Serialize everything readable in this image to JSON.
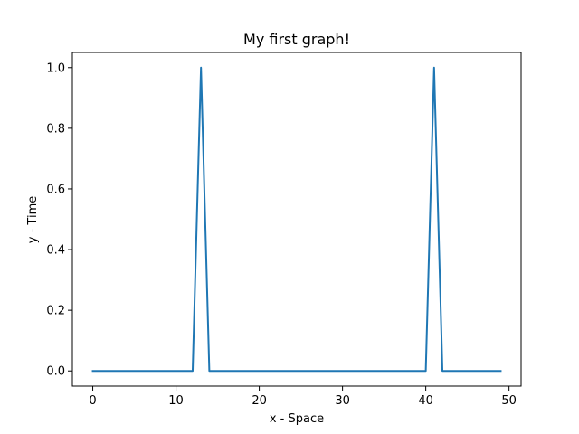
{
  "chart_data": {
    "type": "line",
    "title": "My first graph!",
    "xlabel": "x - Space",
    "ylabel": "y - Time",
    "xlim": [
      -2.45,
      51.45
    ],
    "ylim": [
      -0.05,
      1.05
    ],
    "grid": false,
    "x_ticks": [
      0,
      10,
      20,
      30,
      40,
      50
    ],
    "y_ticks": [
      0.0,
      0.2,
      0.4,
      0.6,
      0.8,
      1.0
    ],
    "x_tick_labels": [
      "0",
      "10",
      "20",
      "30",
      "40",
      "50"
    ],
    "y_tick_labels": [
      "0.0",
      "0.2",
      "0.4",
      "0.6",
      "0.8",
      "1.0"
    ],
    "series": [
      {
        "color": "#1f77b4",
        "x": [
          0,
          1,
          2,
          3,
          4,
          5,
          6,
          7,
          8,
          9,
          10,
          11,
          12,
          13,
          14,
          15,
          16,
          17,
          18,
          19,
          20,
          21,
          22,
          23,
          24,
          25,
          26,
          27,
          28,
          29,
          30,
          31,
          32,
          33,
          34,
          35,
          36,
          37,
          38,
          39,
          40,
          41,
          42,
          43,
          44,
          45,
          46,
          47,
          48,
          49
        ],
        "y": [
          0,
          0,
          0,
          0,
          0,
          0,
          0,
          0,
          0,
          0,
          0,
          0,
          0,
          1,
          0,
          0,
          0,
          0,
          0,
          0,
          0,
          0,
          0,
          0,
          0,
          0,
          0,
          0,
          0,
          0,
          0,
          0,
          0,
          0,
          0,
          0,
          0,
          0,
          0,
          0,
          0,
          1,
          0,
          0,
          0,
          0,
          0,
          0,
          0,
          0
        ]
      }
    ]
  }
}
